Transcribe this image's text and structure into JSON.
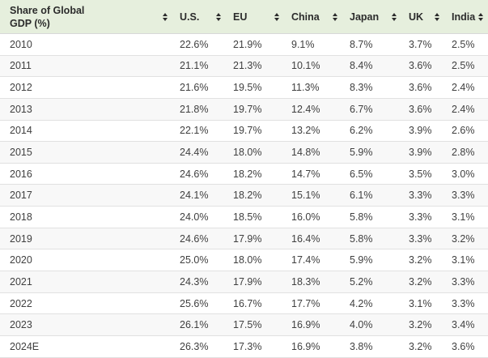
{
  "table": {
    "header": {
      "first_column_label": "Share of Global GDP (%)",
      "columns": [
        "U.S.",
        "EU",
        "China",
        "Japan",
        "UK",
        "India"
      ]
    },
    "rows": [
      {
        "year": "2010",
        "values": [
          "22.6%",
          "21.9%",
          "9.1%",
          "8.7%",
          "3.7%",
          "2.5%"
        ]
      },
      {
        "year": "2011",
        "values": [
          "21.1%",
          "21.3%",
          "10.1%",
          "8.4%",
          "3.6%",
          "2.5%"
        ]
      },
      {
        "year": "2012",
        "values": [
          "21.6%",
          "19.5%",
          "11.3%",
          "8.3%",
          "3.6%",
          "2.4%"
        ]
      },
      {
        "year": "2013",
        "values": [
          "21.8%",
          "19.7%",
          "12.4%",
          "6.7%",
          "3.6%",
          "2.4%"
        ]
      },
      {
        "year": "2014",
        "values": [
          "22.1%",
          "19.7%",
          "13.2%",
          "6.2%",
          "3.9%",
          "2.6%"
        ]
      },
      {
        "year": "2015",
        "values": [
          "24.4%",
          "18.0%",
          "14.8%",
          "5.9%",
          "3.9%",
          "2.8%"
        ]
      },
      {
        "year": "2016",
        "values": [
          "24.6%",
          "18.2%",
          "14.7%",
          "6.5%",
          "3.5%",
          "3.0%"
        ]
      },
      {
        "year": "2017",
        "values": [
          "24.1%",
          "18.2%",
          "15.1%",
          "6.1%",
          "3.3%",
          "3.3%"
        ]
      },
      {
        "year": "2018",
        "values": [
          "24.0%",
          "18.5%",
          "16.0%",
          "5.8%",
          "3.3%",
          "3.1%"
        ]
      },
      {
        "year": "2019",
        "values": [
          "24.6%",
          "17.9%",
          "16.4%",
          "5.8%",
          "3.3%",
          "3.2%"
        ]
      },
      {
        "year": "2020",
        "values": [
          "25.0%",
          "18.0%",
          "17.4%",
          "5.9%",
          "3.2%",
          "3.1%"
        ]
      },
      {
        "year": "2021",
        "values": [
          "24.3%",
          "17.9%",
          "18.3%",
          "5.2%",
          "3.2%",
          "3.3%"
        ]
      },
      {
        "year": "2022",
        "values": [
          "25.6%",
          "16.7%",
          "17.7%",
          "4.2%",
          "3.1%",
          "3.3%"
        ]
      },
      {
        "year": "2023",
        "values": [
          "26.1%",
          "17.5%",
          "16.9%",
          "4.0%",
          "3.2%",
          "3.4%"
        ]
      },
      {
        "year": "2024E",
        "values": [
          "26.3%",
          "17.3%",
          "16.9%",
          "3.8%",
          "3.2%",
          "3.6%"
        ]
      }
    ]
  },
  "colors": {
    "header_bg": "#e6efdd",
    "header_text": "#2b2b2b",
    "row_alt_bg": "#f8f8f8",
    "row_border": "#e1e1e1",
    "body_text": "#3f3f3f",
    "sort_icon": "#2b2b2b"
  },
  "chart_data": {
    "type": "table",
    "title": "Share of Global GDP (%)",
    "categories": [
      "2010",
      "2011",
      "2012",
      "2013",
      "2014",
      "2015",
      "2016",
      "2017",
      "2018",
      "2019",
      "2020",
      "2021",
      "2022",
      "2023",
      "2024E"
    ],
    "series": [
      {
        "name": "U.S.",
        "values": [
          22.6,
          21.1,
          21.6,
          21.8,
          22.1,
          24.4,
          24.6,
          24.1,
          24.0,
          24.6,
          25.0,
          24.3,
          25.6,
          26.1,
          26.3
        ]
      },
      {
        "name": "EU",
        "values": [
          21.9,
          21.3,
          19.5,
          19.7,
          19.7,
          18.0,
          18.2,
          18.2,
          18.5,
          17.9,
          18.0,
          17.9,
          16.7,
          17.5,
          17.3
        ]
      },
      {
        "name": "China",
        "values": [
          9.1,
          10.1,
          11.3,
          12.4,
          13.2,
          14.8,
          14.7,
          15.1,
          16.0,
          16.4,
          17.4,
          18.3,
          17.7,
          16.9,
          16.9
        ]
      },
      {
        "name": "Japan",
        "values": [
          8.7,
          8.4,
          8.3,
          6.7,
          6.2,
          5.9,
          6.5,
          6.1,
          5.8,
          5.8,
          5.9,
          5.2,
          4.2,
          4.0,
          3.8
        ]
      },
      {
        "name": "UK",
        "values": [
          3.7,
          3.6,
          3.6,
          3.6,
          3.9,
          3.9,
          3.5,
          3.3,
          3.3,
          3.3,
          3.2,
          3.2,
          3.1,
          3.2,
          3.2
        ]
      },
      {
        "name": "India",
        "values": [
          2.5,
          2.5,
          2.4,
          2.4,
          2.6,
          2.8,
          3.0,
          3.3,
          3.1,
          3.2,
          3.1,
          3.3,
          3.3,
          3.4,
          3.6
        ]
      }
    ],
    "layout_hints": {
      "sortable_columns": true,
      "striped_rows": true,
      "units": "percent of global GDP"
    }
  }
}
